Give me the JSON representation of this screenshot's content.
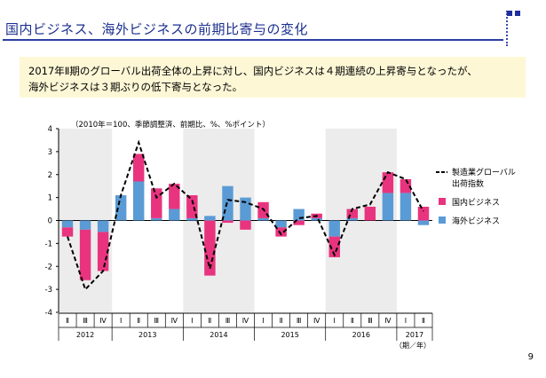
{
  "slide": {
    "title": "国内ビジネス、海外ビジネスの前期比寄与の変化",
    "summary_line1": "2017年Ⅱ期のグローバル出荷全体の上昇に対し、国内ビジネスは４期連続の上昇寄与となったが、",
    "summary_line2": "海外ビジネスは３期ぶりの低下寄与となった。",
    "page_number": "9"
  },
  "colors": {
    "domestic": "#e8347e",
    "overseas": "#5b9bd5",
    "line": "#000000",
    "shade": "#ececec",
    "title": "#1b2f8f"
  },
  "chart_data": {
    "type": "bar",
    "note": "（2010年＝100、季節調整済、前期比、%、%ポイント）",
    "ylim": [
      -4,
      4
    ],
    "yticks": [
      4,
      3,
      2,
      1,
      0,
      -1,
      -2,
      -3,
      -4
    ],
    "categories": [
      "Ⅱ",
      "Ⅲ",
      "Ⅳ",
      "Ⅰ",
      "Ⅱ",
      "Ⅲ",
      "Ⅳ",
      "Ⅰ",
      "Ⅱ",
      "Ⅲ",
      "Ⅳ",
      "Ⅰ",
      "Ⅱ",
      "Ⅲ",
      "Ⅳ",
      "Ⅰ",
      "Ⅱ",
      "Ⅲ",
      "Ⅳ",
      "Ⅰ",
      "Ⅱ"
    ],
    "years": [
      {
        "label": "2012",
        "count": 3
      },
      {
        "label": "2013",
        "count": 4
      },
      {
        "label": "2014",
        "count": 4
      },
      {
        "label": "2015",
        "count": 4
      },
      {
        "label": "2016",
        "count": 4
      },
      {
        "label": "2017",
        "count": 2
      }
    ],
    "xlabel_suffix": "（期／年）",
    "series": [
      {
        "name": "国内ビジネス",
        "values": [
          -0.4,
          -2.2,
          -1.7,
          0.0,
          1.2,
          1.3,
          1.1,
          1.0,
          -2.4,
          -0.1,
          -0.4,
          0.7,
          -0.4,
          -0.2,
          0.2,
          -0.9,
          0.4,
          0.6,
          0.9,
          0.6,
          0.6
        ]
      },
      {
        "name": "海外ビジネス",
        "values": [
          -0.3,
          -0.4,
          -0.5,
          1.1,
          1.7,
          0.1,
          0.5,
          0.1,
          0.2,
          1.5,
          1.0,
          0.1,
          -0.3,
          0.5,
          0.1,
          -0.7,
          0.1,
          0.0,
          1.2,
          1.2,
          -0.2
        ]
      },
      {
        "name": "製造業グローバル出荷指数",
        "values": [
          -0.7,
          -3.0,
          -2.2,
          1.1,
          3.4,
          1.0,
          1.6,
          0.9,
          -2.1,
          0.9,
          0.8,
          0.5,
          -0.6,
          0.1,
          0.2,
          -1.5,
          0.5,
          0.7,
          2.1,
          1.8,
          0.4
        ]
      }
    ],
    "legend": {
      "line_label_1": "製造業グローバル",
      "line_label_2": "出荷指数",
      "domestic": "国内ビジネス",
      "overseas": "海外ビジネス"
    }
  }
}
